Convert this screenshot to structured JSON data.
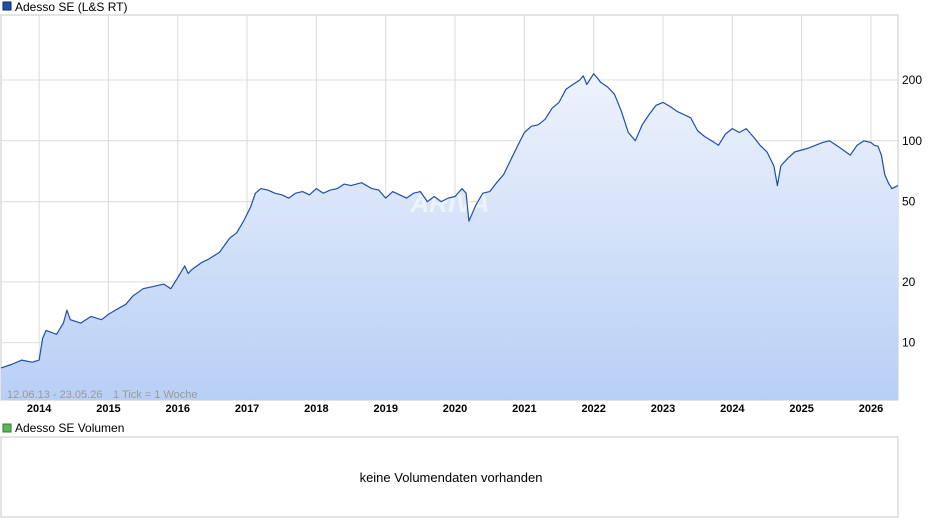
{
  "price_legend": {
    "label": "Adesso SE (L&S RT)",
    "color": "#1f4fa8"
  },
  "volume_legend": {
    "label": "Adesso SE Volumen",
    "color": "#5bb55b"
  },
  "info": {
    "range": "12.06.13 - 23.05.26",
    "tick": "1 Tick = 1 Woche"
  },
  "volume": {
    "message": "keine Volumendaten vorhanden"
  },
  "watermark": "ARIVA",
  "chart_data": {
    "type": "area",
    "scale": "log",
    "ylim": [
      5.2,
      420
    ],
    "y_ticks": [
      10,
      20,
      50,
      100,
      200
    ],
    "x_range": [
      2013.45,
      2026.39
    ],
    "x_ticks": [
      {
        "label": "2014",
        "x": 2014
      },
      {
        "label": "2015",
        "x": 2015
      },
      {
        "label": "2016",
        "x": 2016
      },
      {
        "label": "2017",
        "x": 2017
      },
      {
        "label": "2018",
        "x": 2018
      },
      {
        "label": "2019",
        "x": 2019
      },
      {
        "label": "2020",
        "x": 2020
      },
      {
        "label": "2021",
        "x": 2021
      },
      {
        "label": "2022",
        "x": 2022
      },
      {
        "label": "2023",
        "x": 2023
      },
      {
        "label": "2024",
        "x": 2024
      },
      {
        "label": "2025",
        "x": 2025
      },
      {
        "label": "2026",
        "x": 2026
      }
    ],
    "grid": true,
    "line_color": "#1f4fa8",
    "series": [
      {
        "x": [
          2013.45,
          2013.6,
          2013.75,
          2013.9,
          2014.0,
          2014.05,
          2014.1,
          2014.25,
          2014.35,
          2014.4,
          2014.45,
          2014.6,
          2014.75,
          2014.9,
          2015.0,
          2015.1,
          2015.25,
          2015.35,
          2015.5,
          2015.65,
          2015.8,
          2015.9,
          2016.0,
          2016.1,
          2016.15,
          2016.2,
          2016.35,
          2016.45,
          2016.6,
          2016.75,
          2016.85,
          2016.95,
          2017.05,
          2017.12,
          2017.2,
          2017.3,
          2017.4,
          2017.5,
          2017.6,
          2017.7,
          2017.8,
          2017.9,
          2018.0,
          2018.1,
          2018.2,
          2018.3,
          2018.4,
          2018.5,
          2018.65,
          2018.8,
          2018.9,
          2019.0,
          2019.1,
          2019.2,
          2019.3,
          2019.4,
          2019.5,
          2019.6,
          2019.7,
          2019.8,
          2019.9,
          2020.0,
          2020.1,
          2020.16,
          2020.2,
          2020.3,
          2020.4,
          2020.5,
          2020.6,
          2020.7,
          2020.8,
          2020.9,
          2021.0,
          2021.1,
          2021.2,
          2021.3,
          2021.4,
          2021.5,
          2021.6,
          2021.7,
          2021.8,
          2021.85,
          2021.9,
          2022.0,
          2022.05,
          2022.1,
          2022.2,
          2022.3,
          2022.4,
          2022.5,
          2022.6,
          2022.7,
          2022.8,
          2022.9,
          2023.0,
          2023.1,
          2023.2,
          2023.3,
          2023.4,
          2023.5,
          2023.6,
          2023.7,
          2023.8,
          2023.9,
          2024.0,
          2024.1,
          2024.2,
          2024.3,
          2024.4,
          2024.5,
          2024.6,
          2024.65,
          2024.7,
          2024.8,
          2024.9,
          2025.0,
          2025.1,
          2025.2,
          2025.3,
          2025.4,
          2025.5,
          2025.6,
          2025.7,
          2025.8,
          2025.9,
          2026.0,
          2026.05,
          2026.1,
          2026.15,
          2026.2,
          2026.25,
          2026.3,
          2026.39
        ],
        "values": [
          7.5,
          7.8,
          8.2,
          8.0,
          8.2,
          10.5,
          11.5,
          11.0,
          12.5,
          14.5,
          13.0,
          12.5,
          13.5,
          13.0,
          13.8,
          14.5,
          15.5,
          17.0,
          18.5,
          19.0,
          19.5,
          18.5,
          21.0,
          24.0,
          22.0,
          23.0,
          25.0,
          26.0,
          28.0,
          33.0,
          35.0,
          40.0,
          47.0,
          55.0,
          58.0,
          57.0,
          55.0,
          54.0,
          52.0,
          55.0,
          56.0,
          54.0,
          58.0,
          55.0,
          57.0,
          58.0,
          61.0,
          60.0,
          62.0,
          58.0,
          57.0,
          52.0,
          56.0,
          54.0,
          52.0,
          55.0,
          56.0,
          50.0,
          53.0,
          50.0,
          52.0,
          53.0,
          58.0,
          55.0,
          40.0,
          48.0,
          55.0,
          56.0,
          62.0,
          68.0,
          80.0,
          94.0,
          110.0,
          118.0,
          120.0,
          128.0,
          145.0,
          155.0,
          180.0,
          190.0,
          200.0,
          210.0,
          190.0,
          215.0,
          205.0,
          195.0,
          185.0,
          170.0,
          140.0,
          110.0,
          100.0,
          120.0,
          135.0,
          150.0,
          155.0,
          148.0,
          140.0,
          135.0,
          130.0,
          112.0,
          105.0,
          100.0,
          95.0,
          108.0,
          115.0,
          110.0,
          115.0,
          105.0,
          95.0,
          88.0,
          75.0,
          60.0,
          75.0,
          82.0,
          88.0,
          90.0,
          92.0,
          95.0,
          98.0,
          100.0,
          95.0,
          90.0,
          85.0,
          95.0,
          100.0,
          98.0,
          95.0,
          94.0,
          85.0,
          68.0,
          62.0,
          58.0,
          60.0
        ]
      }
    ]
  }
}
